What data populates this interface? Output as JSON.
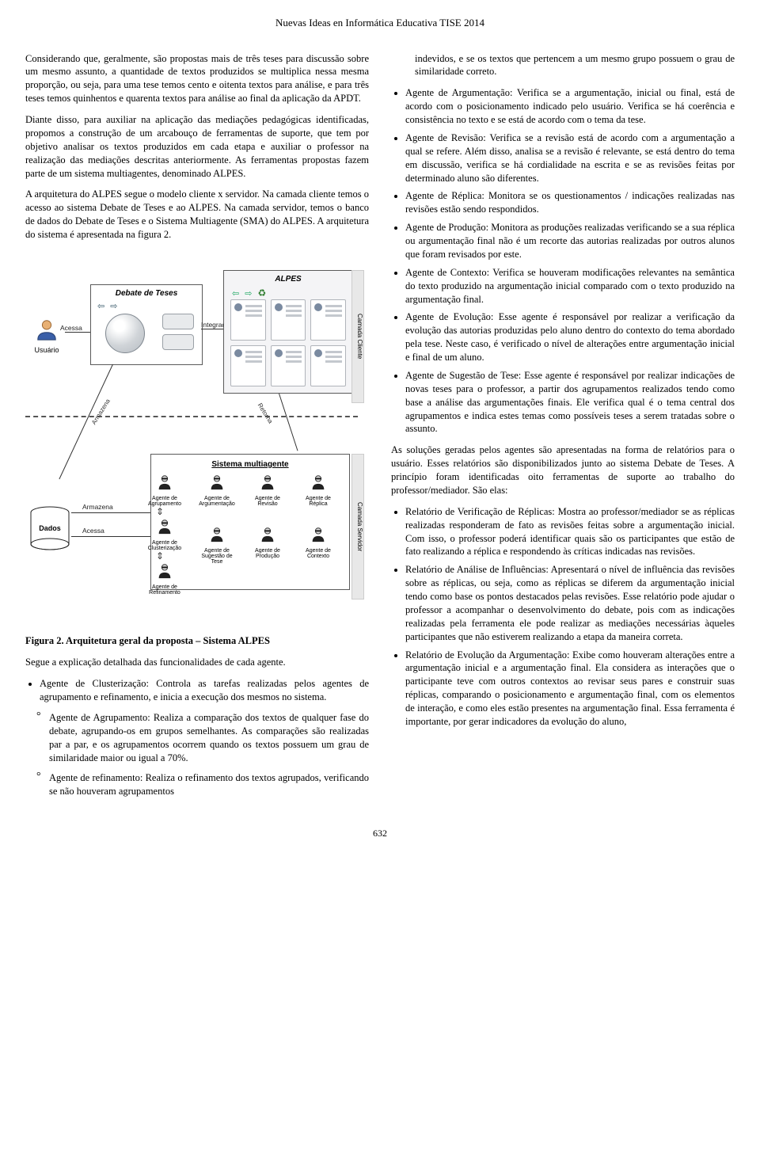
{
  "header": {
    "title": "Nuevas Ideas en Informática Educativa TISE 2014"
  },
  "page_number": "632",
  "left": {
    "p1": "Considerando que, geralmente, são propostas mais de três teses para discussão sobre um mesmo assunto, a quantidade de textos produzidos se multiplica nessa mesma proporção, ou seja, para uma tese temos cento e oitenta textos para análise, e para três teses temos quinhentos e quarenta textos para análise ao final da aplicação da APDT.",
    "p2": "Diante disso, para auxiliar na aplicação das mediações pedagógicas identificadas, propomos a construção de um arcabouço de ferramentas de suporte, que tem por objetivo analisar os textos produzidos em cada etapa e auxiliar o professor na realização das mediações descritas anteriormente. As ferramentas propostas fazem parte de um sistema multiagentes, denominado ALPES.",
    "p3": "A arquitetura do ALPES segue o modelo cliente x servidor. Na camada cliente temos o acesso ao sistema Debate de Teses e ao ALPES. Na camada servidor, temos o banco de dados do Debate de Teses e o Sistema Multiagente (SMA) do ALPES. A arquitetura do sistema é apresentada na figura 2.",
    "figure_caption": "Figura 2. Arquitetura geral da proposta – Sistema ALPES",
    "p4": "Segue a explicação detalhada das funcionalidades de cada agente.",
    "bullets": [
      "Agente de Clusterização: Controla as tarefas realizadas pelos agentes de agrupamento e refinamento, e inicia a execução dos mesmos no sistema."
    ],
    "sub": [
      "Agente de Agrupamento: Realiza a comparação dos textos de qualquer fase do debate, agrupando-os em grupos semelhantes. As comparações são realizadas par a par, e os agrupamentos ocorrem quando os textos possuem um grau de similaridade maior ou igual a 70%.",
      "Agente de refinamento: Realiza o refinamento dos textos agrupados, verificando se não houveram agrupamentos"
    ]
  },
  "right": {
    "intro_cont": "indevidos, e se os textos que pertencem a um mesmo grupo possuem o grau de similaridade correto.",
    "bullets": [
      "Agente de Argumentação: Verifica se a argumentação, inicial ou final, está de acordo com o posicionamento indicado pelo usuário. Verifica se há coerência e consistência no texto e se está de acordo com o tema da tese.",
      "Agente de Revisão: Verifica se a revisão está de acordo com a argumentação a qual se refere. Além disso, analisa se a revisão é relevante, se está dentro do tema em discussão, verifica se há cordialidade na escrita e se as revisões feitas por determinado aluno são diferentes.",
      "Agente de Réplica: Monitora se os questionamentos / indicações realizadas nas revisões estão sendo respondidos.",
      "Agente de Produção: Monitora as produções realizadas verificando se a sua réplica ou argumentação final não é um recorte das autorias realizadas por outros alunos que foram revisados por este.",
      "Agente de Contexto: Verifica se houveram modificações relevantes na semântica do texto produzido na argumentação inicial comparado com o texto produzido na argumentação final.",
      "Agente de Evolução: Esse agente é responsável por realizar a verificação da evolução das autorias produzidas pelo aluno dentro do contexto do tema abordado pela tese. Neste caso, é verificado o nível de alterações entre argumentação inicial e final de um aluno.",
      "Agente de Sugestão de Tese: Esse agente é responsável por realizar indicações de novas teses para o professor, a partir dos agrupamentos realizados tendo como base a análise das argumentações finais. Ele verifica qual é o tema central dos agrupamentos e indica estes temas como possíveis teses a serem tratadas sobre o assunto."
    ],
    "p_after": "As soluções geradas pelos agentes são apresentadas na forma de relatórios para o usuário. Esses relatórios são disponibilizados junto ao sistema Debate de Teses. A princípio foram identificadas oito ferramentas de suporte ao trabalho do professor/mediador. São elas:",
    "bullets2": [
      "Relatório de Verificação de Réplicas: Mostra ao professor/mediador se as réplicas realizadas responderam de fato as revisões feitas sobre a argumentação inicial. Com isso, o professor poderá identificar quais são os participantes que estão de fato realizando a réplica e respondendo às críticas indicadas nas revisões.",
      "Relatório de Análise de Influências: Apresentará o nível de influência das revisões sobre as réplicas, ou seja, como as réplicas se diferem da argumentação inicial tendo como base os pontos destacados pelas revisões. Esse relatório pode ajudar o professor a acompanhar o desenvolvimento do debate, pois com as indicações realizadas pela ferramenta ele pode realizar as mediações necessárias àqueles participantes que não estiverem realizando a etapa da maneira correta.",
      "Relatório de Evolução da Argumentação: Exibe como houveram alterações entre a argumentação inicial e a argumentação final. Ela considera as interações que o participante teve com outros contextos ao revisar seus pares e construir suas réplicas, comparando o posicionamento e argumentação final, com os elementos de interação, e como eles estão presentes na argumentação final. Essa ferramenta é importante, por gerar indicadores da evolução do aluno,"
    ]
  },
  "diagram": {
    "debate_title": "Debate de Teses",
    "alpes_title": "ALPES",
    "user_label": "Usuário",
    "acessa": "Acessa",
    "integrado": "Integrado",
    "camada_cliente": "Camada Cliente",
    "camada_servidor": "Camada Servidor",
    "armazena": "Armazena",
    "retorna": "Retorna",
    "dados": "Dados",
    "sma_title": "Sistema multiagente",
    "armazena2": "Armazena",
    "acessa2": "Acessa",
    "agents": {
      "agrupamento": "Agente de\nAgrupamento",
      "argumentacao": "Agente de\nArgumentação",
      "revisao": "Agente de\nRevisão",
      "replica": "Agente de\nRéplica",
      "clusterizacao": "Agente de\nClusterização",
      "sugestao": "Agente de\nSugestão de Tese",
      "producao": "Agente de\nProdução",
      "contexto": "Agente de\nContexto",
      "refinamento": "Agente de\nRefinamento"
    },
    "colors": {
      "panel_border": "#5a5a5a",
      "alpes_bg": "#f4f4f6",
      "camada_bg": "#e8e8e8"
    }
  }
}
